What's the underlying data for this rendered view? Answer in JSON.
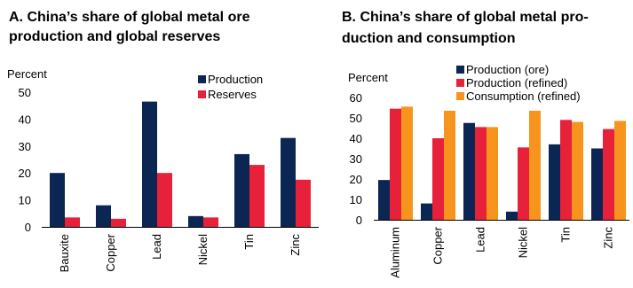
{
  "chart_data": [
    {
      "type": "bar",
      "title_lines": [
        "A. China’s share of global metal ore",
        "production and global reserves"
      ],
      "ylabel": "Percent",
      "ylim": [
        0,
        50
      ],
      "yticks": [
        "0",
        "10",
        "20",
        "30",
        "40",
        "50"
      ],
      "categories": [
        "Bauxite",
        "Copper",
        "Lead",
        "Nickel",
        "Tin",
        "Zinc"
      ],
      "legend_position": "top-right",
      "series": [
        {
          "name": "Production",
          "color": "#0b2652",
          "values": [
            20,
            8,
            46.5,
            4,
            27,
            33
          ]
        },
        {
          "name": "Reserves",
          "color": "#e8213a",
          "values": [
            3.5,
            3,
            20,
            3.5,
            23,
            17.5
          ]
        }
      ]
    },
    {
      "type": "bar",
      "title_lines": [
        "B. China’s share of global metal pro-",
        "duction and consumption"
      ],
      "ylabel": "Percent",
      "ylim": [
        0,
        60
      ],
      "yticks": [
        "0",
        "10",
        "20",
        "30",
        "40",
        "50",
        "60"
      ],
      "categories": [
        "Aluminum",
        "Copper",
        "Lead",
        "Nickel",
        "Tin",
        "Zinc"
      ],
      "legend_position": "top-right",
      "series": [
        {
          "name": "Production (ore)",
          "color": "#0b2652",
          "values": [
            19.5,
            8,
            47.5,
            4,
            37,
            35
          ]
        },
        {
          "name": "Production (refined)",
          "color": "#e8213a",
          "values": [
            54.5,
            40,
            45.5,
            35.5,
            49,
            44.5
          ]
        },
        {
          "name": "Consumption (refined)",
          "color": "#f7941d",
          "values": [
            55.5,
            53.5,
            45.5,
            53.5,
            48,
            48.5
          ]
        }
      ]
    }
  ]
}
